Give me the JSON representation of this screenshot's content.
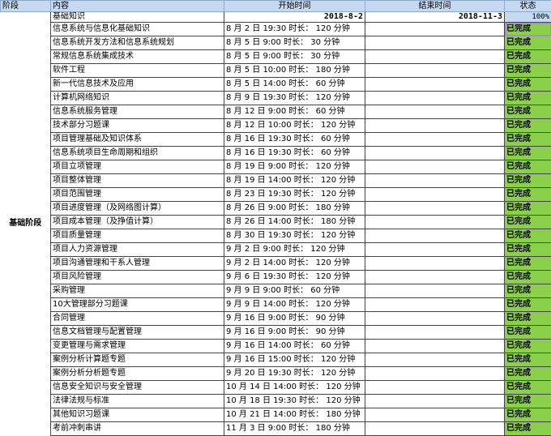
{
  "headers": {
    "stage": "阶段",
    "content": "内容",
    "start": "开始时间",
    "end": "结束时间",
    "status": "状态"
  },
  "stage_name": "基础阶段",
  "summary": {
    "content": "基础知识",
    "start": "2018-8-2",
    "end": "2018-11-3",
    "progress": "100%"
  },
  "colors": {
    "header_bg": "#c5d9f1",
    "done_bg": "#8bd04b"
  },
  "rows": [
    {
      "content": "信息系统与信息化基础知识",
      "start": "8 月 2 日 19:30 时长： 120 分钟",
      "status": "已完成"
    },
    {
      "content": "信息系统开发方法和信息系统规划",
      "start": "8 月 5 日 9:00 时长： 30 分钟",
      "status": "已完成"
    },
    {
      "content": "常规信息系统集成技术",
      "start": "8 月 5 日 9:00 时长： 30 分钟",
      "status": "已完成"
    },
    {
      "content": "软件工程",
      "start": "8 月 5 日 10:00 时长： 180 分钟",
      "status": "已完成"
    },
    {
      "content": "新一代信息技术及应用",
      "start": "8 月 5 日 14:00 时长： 60 分钟",
      "status": "已完成"
    },
    {
      "content": "计算机网络知识",
      "start": "8 月 9 日 19:30 时长： 120 分钟",
      "status": "已完成"
    },
    {
      "content": "信息系统服务管理",
      "start": "8 月 12 日 9:00 时长： 60 分钟",
      "status": "已完成"
    },
    {
      "content": "技术部分习题课",
      "start": "8 月 12 日 10:00 时长： 120 分钟",
      "status": "已完成"
    },
    {
      "content": "项目管理基础及知识体系",
      "start": "8 月 16 日 19:30 时长： 60 分钟",
      "status": "已完成"
    },
    {
      "content": "信息系统项目生命周期和组织",
      "start": "8 月 16 日 19:30 时长： 60 分钟",
      "status": "已完成"
    },
    {
      "content": "项目立项管理",
      "start": "8 月 19 日 9:00 时长： 120 分钟",
      "status": "已完成"
    },
    {
      "content": "项目整体管理",
      "start": "8 月 19 日 14:00 时长： 120 分钟",
      "status": "已完成"
    },
    {
      "content": "项目范围管理",
      "start": "8 月 23 日 19:30 时长： 120 分钟",
      "status": "已完成"
    },
    {
      "content": "项目进度管理（及网络图计算）",
      "start": "8 月 26 日 9:00 时长： 180 分钟",
      "status": "已完成"
    },
    {
      "content": "项目成本管理（及挣值计算）",
      "start": "8 月 26 日 14:00 时长： 180 分钟",
      "status": "已完成"
    },
    {
      "content": "项目质量管理",
      "start": "8 月 30 日 19:30 时长： 120 分钟",
      "status": "已完成"
    },
    {
      "content": "项目人力资源管理",
      "start": "9 月 2 日 9:00 时长： 120 分钟",
      "status": "已完成"
    },
    {
      "content": "项目沟通管理和干系人管理",
      "start": "9 月 2 日 14:00 时长： 120 分钟",
      "status": "已完成"
    },
    {
      "content": "项目风险管理",
      "start": "9 月 6 日 19:30 时长： 120 分钟",
      "status": "已完成"
    },
    {
      "content": "采购管理",
      "start": "9 月 9 日 9:00 时长： 60 分钟",
      "status": "已完成"
    },
    {
      "content": "10大管理部分习题课",
      "start": "9 月 9 日 14:00 时长： 120 分钟",
      "status": "已完成"
    },
    {
      "content": "合同管理",
      "start": "9 月 16 日 9:00 时长： 90 分钟",
      "status": "已完成"
    },
    {
      "content": "信息文档管理与配置管理",
      "start": "9 月 16 日 9:00 时长： 90 分钟",
      "status": "已完成"
    },
    {
      "content": "变更管理与需求管理",
      "start": "9 月 16 日 14:00 时长： 60 分钟",
      "status": "已完成"
    },
    {
      "content": "案例分析计算题专题",
      "start": "9 月 16 日 15:00 时长： 120 分钟",
      "status": "已完成"
    },
    {
      "content": "案例分析分析题专题",
      "start": "9 月 20 日 19:30 时长： 120 分钟",
      "status": "已完成"
    },
    {
      "content": "信息安全知识与安全管理",
      "start": "10 月 14 日 14:00 时长： 120 分钟",
      "status": "已完成"
    },
    {
      "content": "法律法规与标准",
      "start": "10 月 18 日 19:30 时长： 120 分钟",
      "status": "已完成"
    },
    {
      "content": "其他知识习题课",
      "start": "10 月 21 日 14:00 时长： 180 分钟",
      "status": "已完成"
    },
    {
      "content": "考前冲刺串讲",
      "start": "11 月 3 日 9:00 时长： 180 分钟",
      "status": "已完成"
    }
  ]
}
